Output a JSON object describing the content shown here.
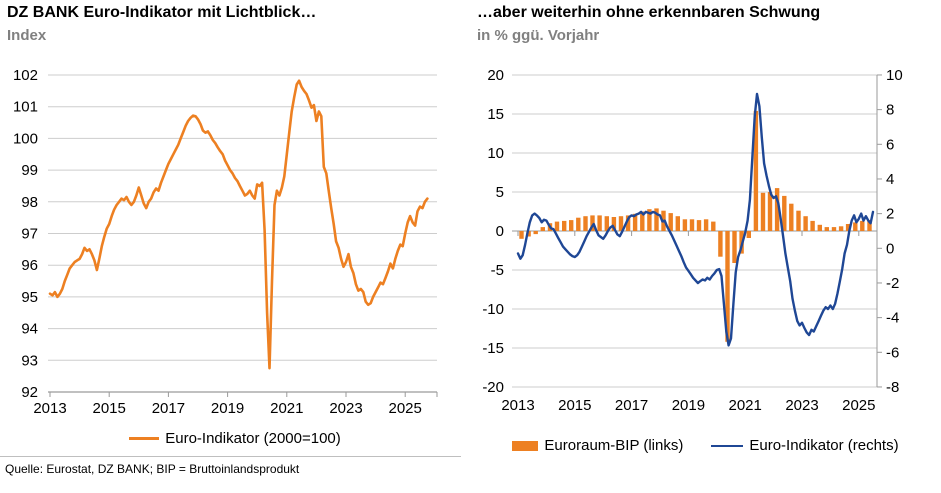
{
  "left_chart": {
    "title": "DZ BANK Euro-Indikator mit Lichtblick…",
    "subtitle": "Index",
    "legend": [
      {
        "label": "Euro-Indikator (2000=100)",
        "type": "line",
        "color": "#ED8022"
      }
    ]
  },
  "right_chart": {
    "title": "…aber weiterhin ohne erkennbaren Schwung",
    "subtitle": "in % ggü. Vorjahr",
    "legend": [
      {
        "label": "Euroraum-BIP (links)",
        "type": "bar",
        "color": "#ED8022"
      },
      {
        "label": "Euro-Indikator (rechts)",
        "type": "line",
        "color": "#1F4795"
      }
    ]
  },
  "footer": {
    "source": "Quelle: Eurostat, DZ BANK; BIP = Bruttoinlandsprodukt"
  },
  "colors": {
    "orange": "#ED8022",
    "blue": "#1F4795",
    "grid": "#CDCDCD",
    "axis": "#9A9A9A",
    "subtitle_gray": "#808080"
  },
  "chart_data": [
    {
      "type": "line",
      "title": "DZ BANK Euro-Indikator mit Lichtblick…",
      "ylabel": "Index",
      "ylim": [
        92,
        102
      ],
      "ytick_step": 1,
      "xticks": [
        2013,
        2015,
        2017,
        2019,
        2021,
        2023,
        2025
      ],
      "x_start_year": 2013.0,
      "x_step_years": 0.0833333,
      "grid": true,
      "legend_position": "bottom",
      "series": [
        {
          "name": "Euro-Indikator (2000=100)",
          "color": "#ED8022",
          "values": [
            95.1,
            95.05,
            95.15,
            95.0,
            95.1,
            95.25,
            95.5,
            95.7,
            95.9,
            96.0,
            96.1,
            96.15,
            96.2,
            96.35,
            96.55,
            96.45,
            96.5,
            96.35,
            96.15,
            95.85,
            96.2,
            96.6,
            96.9,
            97.15,
            97.3,
            97.55,
            97.75,
            97.9,
            98.0,
            98.1,
            98.05,
            98.15,
            98.0,
            97.9,
            98.0,
            98.2,
            98.45,
            98.2,
            97.95,
            97.8,
            98.0,
            98.1,
            98.3,
            98.42,
            98.35,
            98.6,
            98.8,
            99.0,
            99.2,
            99.35,
            99.5,
            99.65,
            99.8,
            100.0,
            100.2,
            100.4,
            100.55,
            100.65,
            100.72,
            100.7,
            100.6,
            100.45,
            100.25,
            100.18,
            100.22,
            100.1,
            99.95,
            99.85,
            99.72,
            99.6,
            99.5,
            99.3,
            99.15,
            99.0,
            98.9,
            98.75,
            98.65,
            98.5,
            98.35,
            98.2,
            98.25,
            98.35,
            98.2,
            98.1,
            98.55,
            98.5,
            98.6,
            97.1,
            94.5,
            92.75,
            95.5,
            97.9,
            98.35,
            98.2,
            98.45,
            98.8,
            99.5,
            100.2,
            100.85,
            101.3,
            101.7,
            101.82,
            101.62,
            101.5,
            101.4,
            101.2,
            100.97,
            101.05,
            100.55,
            100.85,
            100.7,
            99.1,
            98.9,
            98.35,
            97.8,
            97.3,
            96.75,
            96.55,
            96.2,
            95.95,
            96.1,
            96.35,
            95.95,
            95.75,
            95.4,
            95.2,
            95.25,
            95.15,
            94.85,
            94.75,
            94.8,
            95.0,
            95.15,
            95.3,
            95.45,
            95.4,
            95.6,
            95.8,
            96.05,
            95.9,
            96.2,
            96.45,
            96.65,
            96.6,
            97.0,
            97.35,
            97.55,
            97.35,
            97.25,
            97.7,
            97.85,
            97.8,
            98.0,
            98.1
          ]
        }
      ]
    },
    {
      "type": "bar+line",
      "title": "…aber weiterhin ohne erkennbaren Schwung",
      "ylabel": "in % ggü. Vorjahr",
      "left_ylim": [
        -20,
        20
      ],
      "left_ytick_step": 5,
      "right_ylim": [
        -8,
        10
      ],
      "right_ytick_step": 2,
      "xticks": [
        2013,
        2015,
        2017,
        2019,
        2021,
        2023,
        2025
      ],
      "grid": true,
      "legend_position": "bottom",
      "bar_series": {
        "name": "Euroraum-BIP (links)",
        "axis": "left",
        "color": "#ED8022",
        "x_start_year": 2013.125,
        "x_step_years": 0.25,
        "values": [
          -1.0,
          -0.7,
          -0.4,
          0.5,
          1.0,
          1.2,
          1.3,
          1.4,
          1.7,
          1.9,
          2.0,
          2.0,
          1.9,
          1.8,
          1.9,
          2.0,
          2.2,
          2.5,
          2.8,
          2.9,
          2.6,
          2.3,
          1.9,
          1.5,
          1.5,
          1.4,
          1.5,
          1.2,
          -3.3,
          -14.2,
          -4.1,
          -2.9,
          -0.9,
          15.4,
          4.9,
          5.0,
          5.5,
          4.5,
          3.5,
          2.6,
          1.9,
          1.3,
          0.8,
          0.5,
          0.5,
          0.6,
          0.9,
          1.1,
          1.3,
          1.4
        ]
      },
      "line_series": {
        "name": "Euro-Indikator (rechts)",
        "axis": "right",
        "color": "#1F4795",
        "x_start_year": 2013.0,
        "x_step_years": 0.0833333,
        "values": [
          -0.3,
          -0.6,
          -0.4,
          0.2,
          0.9,
          1.5,
          1.9,
          2.0,
          1.9,
          1.75,
          1.5,
          1.65,
          1.6,
          1.35,
          1.15,
          1.1,
          0.85,
          0.6,
          0.35,
          0.1,
          -0.05,
          -0.2,
          -0.35,
          -0.45,
          -0.5,
          -0.4,
          -0.2,
          0.1,
          0.4,
          0.7,
          0.95,
          1.2,
          1.4,
          1.05,
          0.75,
          0.65,
          0.55,
          0.75,
          1.0,
          1.2,
          1.3,
          1.05,
          0.8,
          0.7,
          0.95,
          1.25,
          1.55,
          1.8,
          1.9,
          1.85,
          1.95,
          2.0,
          2.1,
          1.95,
          2.1,
          2.05,
          2.0,
          2.1,
          2.05,
          1.95,
          1.9,
          1.55,
          1.6,
          1.25,
          1.0,
          0.75,
          0.45,
          0.15,
          -0.15,
          -0.45,
          -0.8,
          -1.1,
          -1.3,
          -1.5,
          -1.7,
          -1.85,
          -2.0,
          -1.9,
          -1.8,
          -1.85,
          -1.7,
          -1.8,
          -1.6,
          -1.45,
          -1.25,
          -1.2,
          -1.6,
          -3.2,
          -4.8,
          -5.6,
          -5.2,
          -3.2,
          -1.4,
          -0.5,
          -0.1,
          0.4,
          0.9,
          1.6,
          2.8,
          5.2,
          7.6,
          8.9,
          8.2,
          6.4,
          4.9,
          4.2,
          3.6,
          3.1,
          2.9,
          3.0,
          2.6,
          1.7,
          0.7,
          -0.3,
          -1.1,
          -1.9,
          -2.9,
          -3.6,
          -4.2,
          -4.45,
          -4.3,
          -4.6,
          -4.85,
          -5.0,
          -4.7,
          -4.8,
          -4.5,
          -4.2,
          -3.9,
          -3.6,
          -3.4,
          -3.5,
          -3.3,
          -3.5,
          -3.2,
          -2.6,
          -1.9,
          -1.2,
          -0.3,
          0.2,
          1.0,
          1.6,
          1.9,
          1.5,
          1.7,
          2.0,
          1.6,
          1.85,
          1.6,
          1.45,
          2.1
        ]
      }
    }
  ]
}
